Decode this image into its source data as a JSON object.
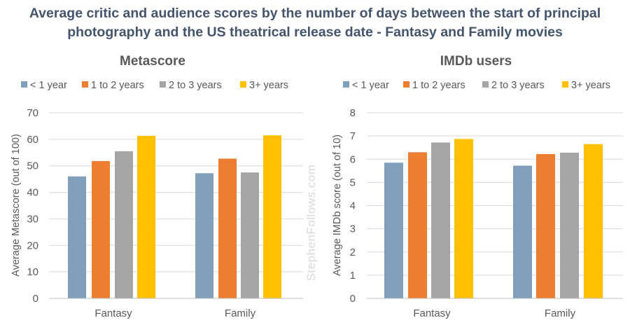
{
  "title": "Average critic and audience scores by the number of days between the start of principal photography and the US theatrical release date - Fantasy and Family movies",
  "watermark": "StephenFollows.com",
  "colors": {
    "lt1": "#7f9fbb",
    "y1to2": "#ed7d31",
    "y2to3": "#a5a5a5",
    "y3plus": "#ffc000"
  },
  "chart_data": [
    {
      "type": "bar",
      "title": "Metascore",
      "xlabel": "",
      "ylabel": "Average Metascore (out of 100)",
      "categories": [
        "Fantasy",
        "Family"
      ],
      "ylim": [
        0,
        70
      ],
      "yticks": [
        0,
        10,
        20,
        30,
        40,
        50,
        60,
        70
      ],
      "grid": true,
      "legend_position": "top",
      "series": [
        {
          "name": "< 1 year",
          "color": "#7f9fbb",
          "values": [
            46,
            47.2
          ]
        },
        {
          "name": "1 to 2 years",
          "color": "#ed7d31",
          "values": [
            51.8,
            52.7
          ]
        },
        {
          "name": "2 to 3 years",
          "color": "#a5a5a5",
          "values": [
            55.5,
            47.5
          ]
        },
        {
          "name": "3+ years",
          "color": "#ffc000",
          "values": [
            61.3,
            61.5
          ]
        }
      ]
    },
    {
      "type": "bar",
      "title": "IMDb users",
      "xlabel": "",
      "ylabel": "Average IMDb score (out of 10)",
      "categories": [
        "Fantasy",
        "Family"
      ],
      "ylim": [
        0,
        8
      ],
      "yticks": [
        0,
        1,
        2,
        3,
        4,
        5,
        6,
        7,
        8
      ],
      "grid": true,
      "legend_position": "top",
      "series": [
        {
          "name": "< 1 year",
          "color": "#7f9fbb",
          "values": [
            5.85,
            5.72
          ]
        },
        {
          "name": "1 to 2 years",
          "color": "#ed7d31",
          "values": [
            6.3,
            6.22
          ]
        },
        {
          "name": "2 to 3 years",
          "color": "#a5a5a5",
          "values": [
            6.72,
            6.28
          ]
        },
        {
          "name": "3+ years",
          "color": "#ffc000",
          "values": [
            6.87,
            6.65
          ]
        }
      ]
    }
  ]
}
